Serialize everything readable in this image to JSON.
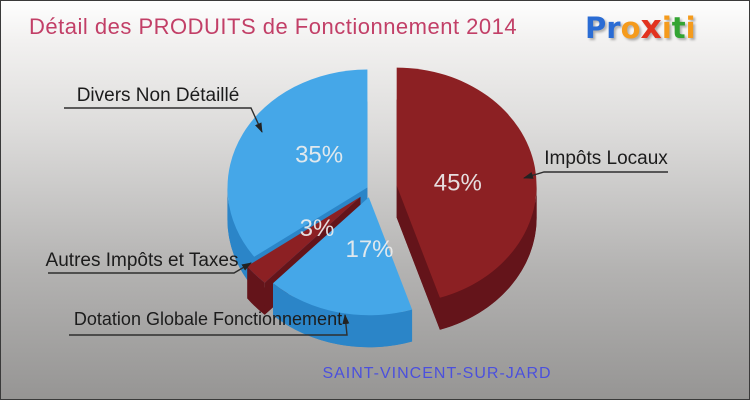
{
  "header": {
    "title": "Détail des PRODUITS de Fonctionnement 2014",
    "title_color": "#c23f67"
  },
  "logo": {
    "name": "proxiti",
    "letters": [
      {
        "ch": "P",
        "color": "#2a6cd4"
      },
      {
        "ch": "r",
        "color": "#2a6cd4"
      },
      {
        "ch": "o",
        "color": "#f59b1c"
      },
      {
        "ch": "x",
        "color": "#e2331f"
      },
      {
        "ch": "i",
        "color": "#f59b1c"
      },
      {
        "ch": "t",
        "color": "#33a433"
      },
      {
        "ch": "i",
        "color": "#f59b1c"
      }
    ]
  },
  "footer": {
    "town": "SAINT-VINCENT-SUR-JARD",
    "color": "#4b50dd"
  },
  "chart_data": {
    "type": "pie",
    "style": "3d-exploded",
    "title": "Détail des PRODUITS de Fonctionnement 2014",
    "unit": "percent",
    "start_angle_deg": 0,
    "clockwise": true,
    "legend": false,
    "slices": [
      {
        "label": "Impôts Locaux",
        "value": 45,
        "pct_label": "45%",
        "color": "#8c2023",
        "side_color": "#64141a"
      },
      {
        "label": "Dotation Globale Fonctionnement",
        "value": 17,
        "pct_label": "17%",
        "color": "#45a7e8",
        "side_color": "#2b85c8"
      },
      {
        "label": "Autres Impôts et Taxes",
        "value": 3,
        "pct_label": "3%",
        "color": "#8c2023",
        "side_color": "#64141a"
      },
      {
        "label": "Divers Non Détaillé",
        "value": 35,
        "pct_label": "35%",
        "color": "#45a7e8",
        "side_color": "#2b85c8"
      }
    ]
  }
}
